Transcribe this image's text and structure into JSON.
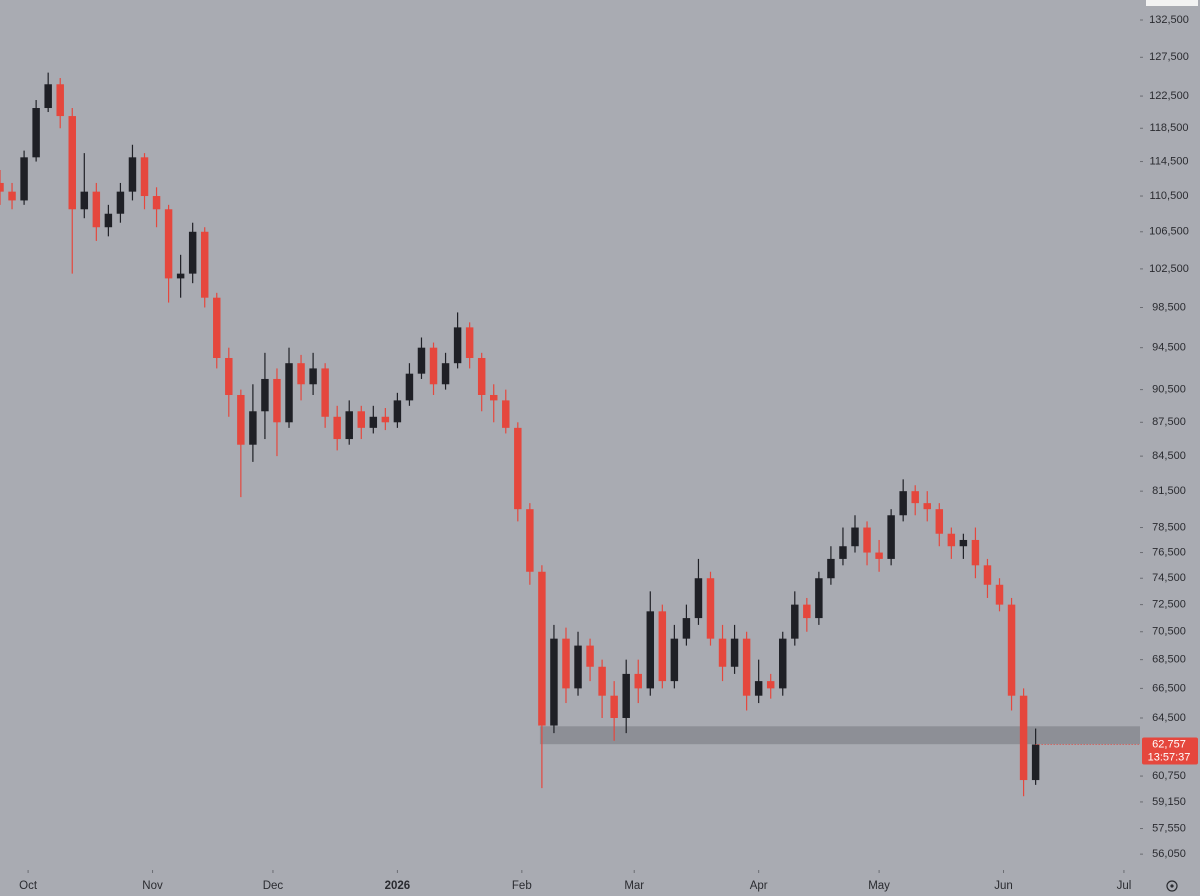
{
  "chart_data": {
    "type": "candlestick",
    "log_scale": true,
    "ylim": [
      55140,
      135260
    ],
    "yticks": [
      {
        "value": 132500,
        "label": "132,500"
      },
      {
        "value": 127500,
        "label": "127,500"
      },
      {
        "value": 122500,
        "label": "122,500"
      },
      {
        "value": 118500,
        "label": "118,500"
      },
      {
        "value": 114500,
        "label": "114,500"
      },
      {
        "value": 110500,
        "label": "110,500"
      },
      {
        "value": 106500,
        "label": "106,500"
      },
      {
        "value": 102500,
        "label": "102,500"
      },
      {
        "value": 98500,
        "label": "98,500"
      },
      {
        "value": 94500,
        "label": "94,500"
      },
      {
        "value": 90500,
        "label": "90,500"
      },
      {
        "value": 87500,
        "label": "87,500"
      },
      {
        "value": 84500,
        "label": "84,500"
      },
      {
        "value": 81500,
        "label": "81,500"
      },
      {
        "value": 78500,
        "label": "78,500"
      },
      {
        "value": 76500,
        "label": "76,500"
      },
      {
        "value": 74500,
        "label": "74,500"
      },
      {
        "value": 72500,
        "label": "72,500"
      },
      {
        "value": 70500,
        "label": "70,500"
      },
      {
        "value": 68500,
        "label": "68,500"
      },
      {
        "value": 66500,
        "label": "66,500"
      },
      {
        "value": 64500,
        "label": "64,500"
      },
      {
        "value": 60750,
        "label": "60,750"
      },
      {
        "value": 59150,
        "label": "59,150"
      },
      {
        "value": 57550,
        "label": "57,550"
      },
      {
        "value": 56050,
        "label": "56,050"
      }
    ],
    "xlim": [
      0,
      284
    ],
    "xticks": [
      {
        "value": 7,
        "label": "Oct"
      },
      {
        "value": 38,
        "label": "Nov"
      },
      {
        "value": 68,
        "label": "Dec"
      },
      {
        "value": 99,
        "label": "2026"
      },
      {
        "value": 130,
        "label": "Feb"
      },
      {
        "value": 158,
        "label": "Mar"
      },
      {
        "value": 189,
        "label": "Apr"
      },
      {
        "value": 219,
        "label": "May"
      },
      {
        "value": 250,
        "label": "Jun"
      },
      {
        "value": 280,
        "label": "Jul"
      }
    ],
    "up_color": "#1f2026",
    "down_color": "#e5473d",
    "x": [
      0,
      3,
      6,
      9,
      12,
      15,
      18,
      21,
      24,
      27,
      30,
      33,
      36,
      39,
      42,
      45,
      48,
      51,
      54,
      57,
      60,
      63,
      66,
      69,
      72,
      75,
      78,
      81,
      84,
      87,
      90,
      93,
      96,
      99,
      102,
      105,
      108,
      111,
      114,
      117,
      120,
      123,
      126,
      129,
      132,
      135,
      138,
      141,
      144,
      147,
      150,
      153,
      156,
      159,
      162,
      165,
      168,
      171,
      174,
      177,
      180,
      183,
      186,
      189,
      192,
      195,
      198,
      201,
      204,
      207,
      210,
      213,
      216,
      219,
      222,
      225,
      228,
      231,
      234,
      237,
      240,
      243,
      246,
      249,
      252,
      255,
      258
    ],
    "open": [
      112000,
      111000,
      110000,
      115000,
      121000,
      124000,
      120000,
      109000,
      111000,
      107000,
      108500,
      111000,
      115000,
      110500,
      109000,
      101500,
      102000,
      106500,
      99500,
      93500,
      90000,
      85500,
      88500,
      91500,
      87500,
      93000,
      91000,
      92500,
      88000,
      86000,
      88500,
      87000,
      88000,
      87500,
      89500,
      92000,
      94500,
      91000,
      93000,
      96500,
      93500,
      90000,
      89500,
      87000,
      80000,
      75000,
      64000,
      70000,
      66500,
      69500,
      68000,
      66000,
      64500,
      67500,
      66500,
      72000,
      67000,
      70000,
      71500,
      74500,
      70000,
      68000,
      70000,
      66000,
      67000,
      66500,
      70000,
      72500,
      71500,
      74500,
      76000,
      77000,
      78500,
      76500,
      76000,
      79500,
      81500,
      80500,
      80000,
      78000,
      77000,
      77500,
      75500,
      74000,
      72500,
      66000,
      60500
    ],
    "high": [
      113500,
      112000,
      115800,
      122000,
      125500,
      124800,
      121000,
      115500,
      112000,
      109500,
      112000,
      116500,
      115500,
      111500,
      109500,
      104000,
      107500,
      107000,
      100000,
      94500,
      90500,
      91000,
      94000,
      92500,
      94500,
      93800,
      94000,
      93000,
      89000,
      89500,
      89000,
      89000,
      88800,
      90200,
      93000,
      95500,
      95000,
      94000,
      98000,
      97000,
      94000,
      91000,
      90500,
      87500,
      80500,
      75500,
      71000,
      70800,
      70500,
      70000,
      68500,
      67000,
      68500,
      68500,
      73500,
      72500,
      71000,
      72500,
      76000,
      75000,
      71000,
      71000,
      70500,
      68500,
      67500,
      70500,
      73500,
      73000,
      75000,
      77000,
      78500,
      79500,
      79000,
      77500,
      80000,
      82500,
      82000,
      81500,
      80500,
      78500,
      78000,
      78500,
      76000,
      74500,
      73000,
      66500,
      63800
    ],
    "low": [
      109500,
      109000,
      109500,
      114500,
      120500,
      118500,
      102000,
      108000,
      105500,
      106000,
      107500,
      110000,
      109000,
      107000,
      99000,
      99500,
      101000,
      98500,
      92500,
      88000,
      81000,
      84000,
      86000,
      84500,
      87000,
      89500,
      90000,
      87000,
      85000,
      85500,
      86000,
      86500,
      86800,
      87000,
      89000,
      91500,
      90000,
      90500,
      92500,
      92500,
      88500,
      87500,
      86500,
      79000,
      74000,
      60000,
      63500,
      65500,
      66000,
      67000,
      64500,
      63000,
      63500,
      65500,
      66000,
      66500,
      66500,
      69500,
      71000,
      69500,
      67000,
      67500,
      65000,
      65500,
      65800,
      66000,
      69500,
      70500,
      71000,
      74000,
      75500,
      76500,
      75500,
      75000,
      75500,
      79000,
      79500,
      79000,
      77000,
      76000,
      76000,
      74500,
      73000,
      72000,
      65000,
      59500,
      60200
    ],
    "close": [
      111000,
      110000,
      115000,
      121000,
      124000,
      120000,
      109000,
      111000,
      107000,
      108500,
      111000,
      115000,
      110500,
      109000,
      101500,
      102000,
      106500,
      99500,
      93500,
      90000,
      85500,
      88500,
      91500,
      87500,
      93000,
      91000,
      92500,
      88000,
      86000,
      88500,
      87000,
      88000,
      87500,
      89500,
      92000,
      94500,
      91000,
      93000,
      96500,
      93500,
      90000,
      89500,
      87000,
      80000,
      75000,
      64000,
      70000,
      66500,
      69500,
      68000,
      66000,
      64500,
      67500,
      66500,
      72000,
      67000,
      70000,
      71500,
      74500,
      70000,
      68000,
      70000,
      66000,
      67000,
      66500,
      70000,
      72500,
      71500,
      74500,
      76000,
      77000,
      78500,
      76500,
      76000,
      79500,
      81500,
      80500,
      80000,
      78000,
      77000,
      77500,
      75500,
      74000,
      72500,
      66000,
      60500,
      62757
    ],
    "zone": {
      "x_start": 134.5,
      "low": 62780,
      "high": 63950,
      "color": "#8d8f96"
    },
    "last_price": {
      "value": 62757,
      "label": "62,757"
    },
    "countdown": "13:57:37"
  }
}
